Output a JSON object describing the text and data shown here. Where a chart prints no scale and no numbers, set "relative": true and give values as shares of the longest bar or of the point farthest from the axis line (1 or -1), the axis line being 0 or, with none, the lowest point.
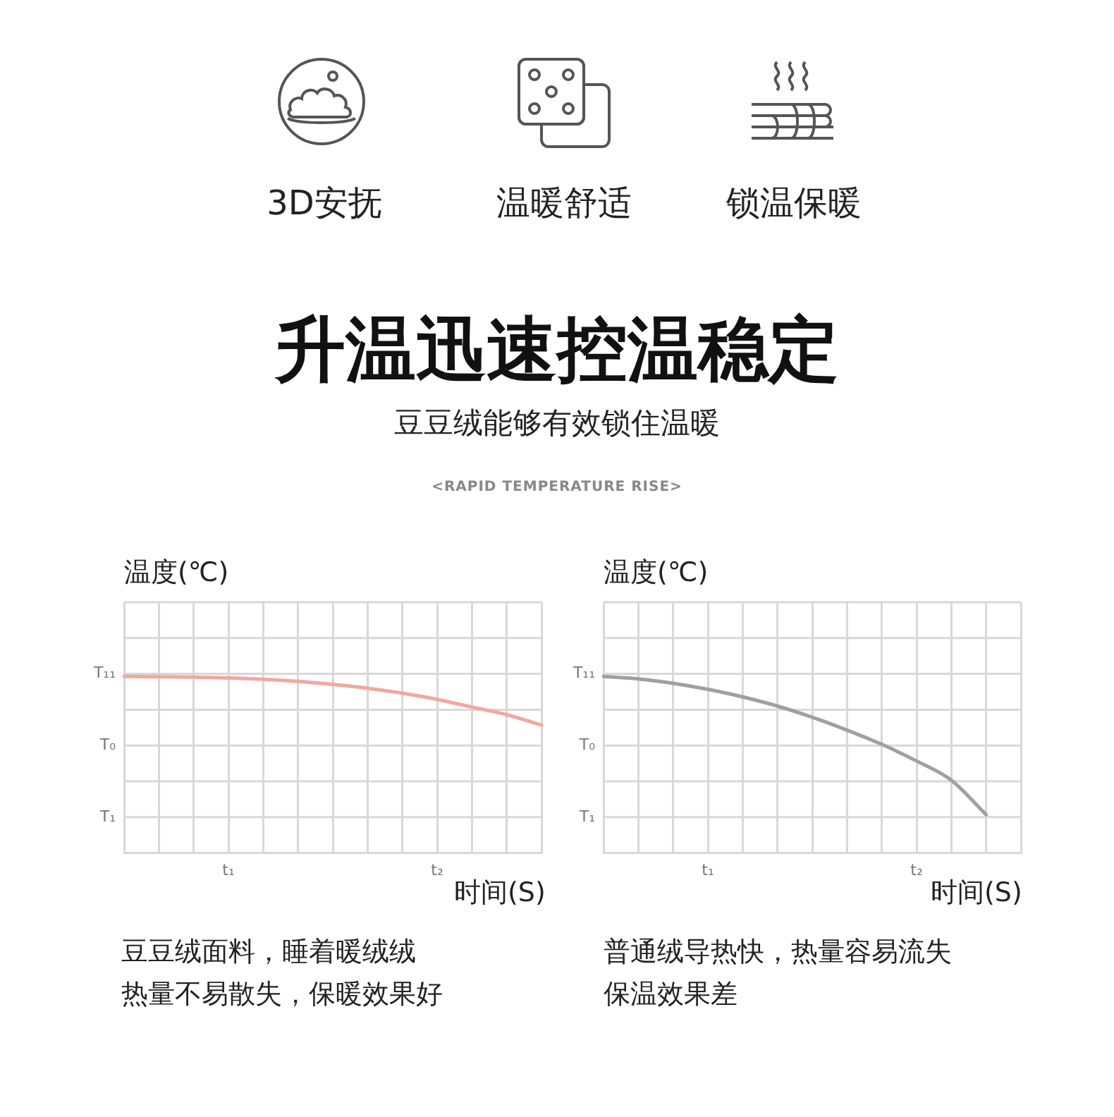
{
  "chart_data": [
    {
      "type": "other",
      "title": "升温迅速控温稳定",
      "subtitle": "豆豆绒能够有效锁住温暖",
      "annotations": [
        "3D安抚",
        "温暖舒适",
        "锁温保暖",
        "<RAPID TEMPERATURE RISE>"
      ]
    },
    {
      "type": "line",
      "ylabel": "温度(℃)",
      "xlabel": "时间(S)",
      "relative": true,
      "grid": true,
      "legend": false,
      "marker": "none",
      "line_style": "solid",
      "categories": [
        null,
        null,
        null,
        "t₁",
        null,
        null,
        null,
        null,
        null,
        "t₂",
        null,
        null,
        null
      ],
      "series": [
        {
          "color": "#f0a8a0",
          "values": [
            1,
            0.998,
            0.996,
            0.992,
            0.984,
            0.972,
            0.955,
            0.933,
            0.905,
            0.87,
            0.826,
            0.783,
            0.724
          ]
        }
      ],
      "annotations": [
        "T₁₁",
        "T₀",
        "T₁",
        "豆豆绒面料，睡着暖绒绒",
        "热量不易散失，保暖效果好"
      ]
    },
    {
      "type": "line",
      "ylabel": "温度(℃)",
      "xlabel": "时间(S)",
      "relative": true,
      "grid": true,
      "legend": false,
      "marker": "none",
      "line_style": "solid",
      "categories": [
        null,
        null,
        null,
        "t₁",
        null,
        null,
        null,
        null,
        null,
        "t₂",
        null,
        null,
        null
      ],
      "series": [
        {
          "color": "#a0a0a0",
          "values": [
            1,
            0.986,
            0.961,
            0.927,
            0.884,
            0.832,
            0.769,
            0.696,
            0.615,
            0.521,
            0.412,
            0.217,
            null
          ]
        }
      ],
      "annotations": [
        "T₁₁",
        "T₀",
        "T₁",
        "普通绒导热快，热量容易流失",
        "保温效果差"
      ]
    }
  ]
}
